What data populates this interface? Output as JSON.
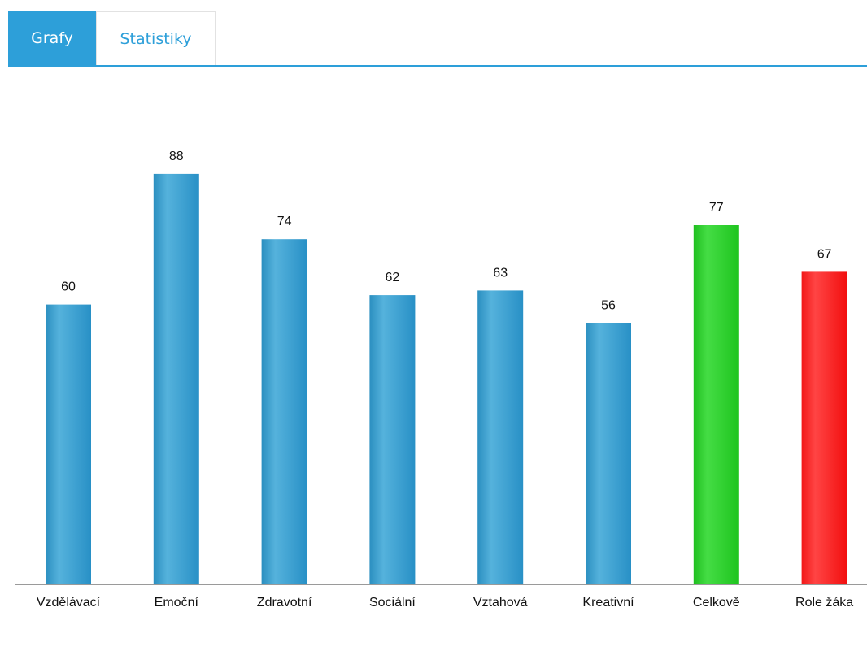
{
  "tabs": [
    {
      "label": "Grafy",
      "active": true
    },
    {
      "label": "Statistiky",
      "active": false
    }
  ],
  "colors": {
    "accent": "#2d9fd9",
    "bar_default": "#3a9fcf",
    "bar_overall": "#22cc22",
    "bar_role": "#ff1a1a"
  },
  "chart_data": {
    "type": "bar",
    "title": "",
    "xlabel": "",
    "ylabel": "",
    "grid": false,
    "legend": "none",
    "ylim": [
      0,
      100
    ],
    "categories": [
      "Vzdělávací",
      "Emoční",
      "Zdravotní",
      "Sociální",
      "Vztahová",
      "Kreativní",
      "Celkově",
      "Role žáka"
    ],
    "values": [
      60,
      88,
      74,
      62,
      63,
      56,
      77,
      67
    ],
    "bar_colors": [
      "blue",
      "blue",
      "blue",
      "blue",
      "blue",
      "blue",
      "green",
      "red"
    ]
  }
}
